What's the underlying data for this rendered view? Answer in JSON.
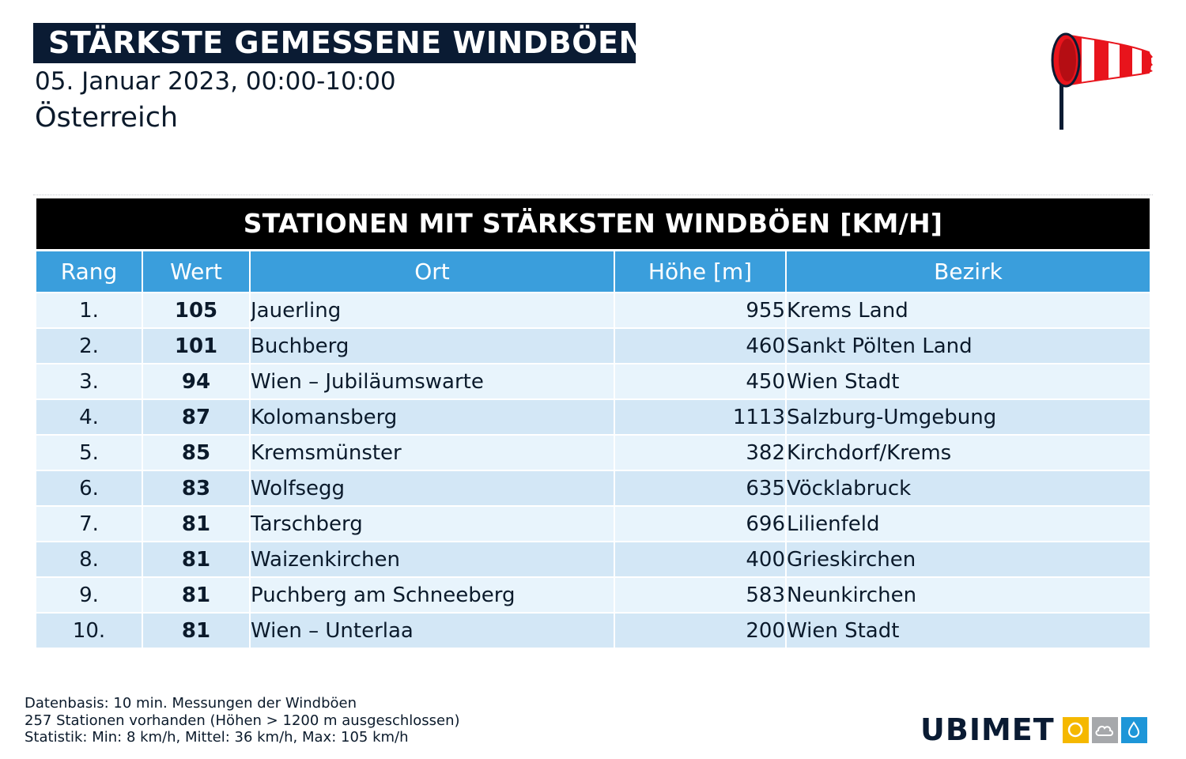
{
  "header": {
    "title": "STÄRKSTE GEMESSENE WINDBÖEN",
    "date_range": "05. Januar 2023, 00:00-10:00",
    "region": "Österreich",
    "icon": "windsock-icon"
  },
  "table": {
    "title": "STATIONEN MIT STÄRKSTEN WINDBÖEN [KM/H]",
    "columns": [
      "Rang",
      "Wert",
      "Ort",
      "Höhe [m]",
      "Bezirk"
    ],
    "rows": [
      {
        "rank": "1.",
        "value": "105",
        "location": "Jauerling",
        "altitude": "955",
        "district": "Krems Land"
      },
      {
        "rank": "2.",
        "value": "101",
        "location": "Buchberg",
        "altitude": "460",
        "district": "Sankt Pölten Land"
      },
      {
        "rank": "3.",
        "value": "94",
        "location": "Wien – Jubiläumswarte",
        "altitude": "450",
        "district": "Wien Stadt"
      },
      {
        "rank": "4.",
        "value": "87",
        "location": "Kolomansberg",
        "altitude": "1113",
        "district": "Salzburg-Umgebung"
      },
      {
        "rank": "5.",
        "value": "85",
        "location": "Kremsmünster",
        "altitude": "382",
        "district": "Kirchdorf/Krems"
      },
      {
        "rank": "6.",
        "value": "83",
        "location": "Wolfsegg",
        "altitude": "635",
        "district": "Vöcklabruck"
      },
      {
        "rank": "7.",
        "value": "81",
        "location": "Tarschberg",
        "altitude": "696",
        "district": "Lilienfeld"
      },
      {
        "rank": "8.",
        "value": "81",
        "location": "Waizenkirchen",
        "altitude": "400",
        "district": "Grieskirchen"
      },
      {
        "rank": "9.",
        "value": "81",
        "location": "Puchberg am Schneeberg",
        "altitude": "583",
        "district": "Neunkirchen"
      },
      {
        "rank": "10.",
        "value": "81",
        "location": "Wien – Unterlaa",
        "altitude": "200",
        "district": "Wien Stadt"
      }
    ]
  },
  "footer": {
    "lines": [
      "Datenbasis: 10 min. Messungen der Windböen",
      "257 Stationen vorhanden (Höhen > 1200 m ausgeschlossen)",
      "Statistik: Min: 8 km/h, Mittel: 36 km/h, Max: 105 km/h"
    ]
  },
  "logo": {
    "text": "UBIMET",
    "icons": [
      "sun-icon",
      "cloud-icon",
      "drop-icon"
    ]
  },
  "colors": {
    "title_bg": "#0a1b33",
    "table_title_bg": "#000000",
    "column_header_bg": "#3a9edc",
    "row_light": "#e8f4fc",
    "row_dark": "#d3e7f6",
    "windsock_red": "#e8141c"
  }
}
